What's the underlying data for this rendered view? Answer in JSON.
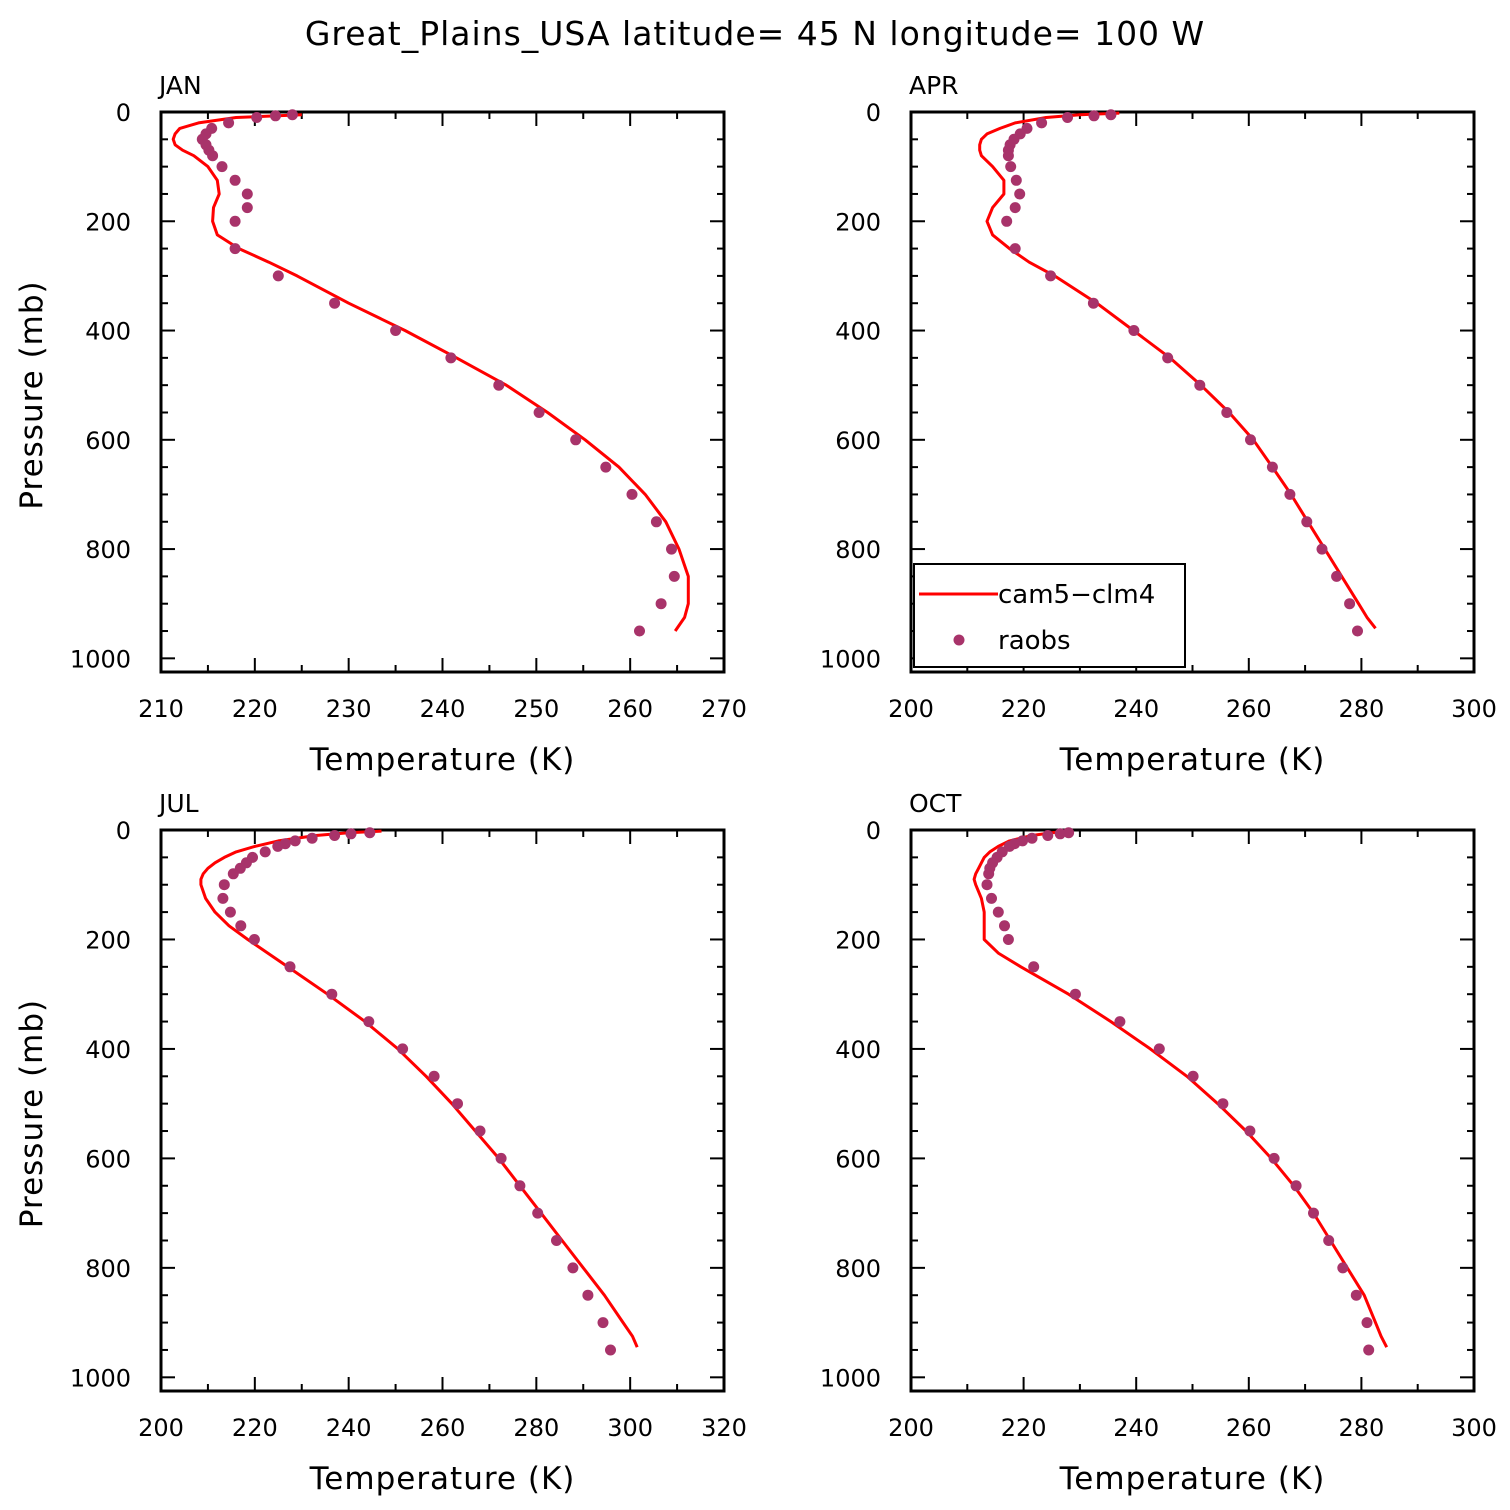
{
  "title": "Great_Plains_USA  latitude= 45 N longitude= 100 W",
  "colors": {
    "model": "#ff0000",
    "obs": "#a8336a",
    "axis": "#000000"
  },
  "legend": {
    "model_label": "cam5−clm4",
    "obs_label": "raobs",
    "panel": "APR"
  },
  "chart_data": [
    {
      "type": "line",
      "panel": "JAN",
      "title": "JAN",
      "xlabel": "Temperature (K)",
      "ylabel": "Pressure (mb)",
      "xlim": [
        210,
        270
      ],
      "xticks": [
        "210",
        "220",
        "230",
        "240",
        "250",
        "260",
        "270"
      ],
      "ylim": [
        1025,
        0
      ],
      "yticks": [
        "0",
        "200",
        "400",
        "600",
        "800",
        "1000"
      ],
      "series": [
        {
          "name": "cam5−clm4",
          "kind": "line",
          "p": [
            5,
            10,
            20,
            30,
            40,
            50,
            60,
            70,
            80,
            100,
            125,
            150,
            175,
            200,
            225,
            250,
            275,
            300,
            350,
            400,
            450,
            500,
            550,
            600,
            650,
            700,
            750,
            800,
            850,
            900,
            925,
            950
          ],
          "t": [
            225,
            218,
            214,
            212,
            211.5,
            211.3,
            211.5,
            212.3,
            213.5,
            215,
            216,
            216.2,
            215.6,
            215.5,
            216,
            218.3,
            221.5,
            224.5,
            230,
            236,
            241.5,
            246.8,
            251.2,
            255.2,
            258.8,
            261.6,
            263.8,
            265.2,
            266.2,
            266.2,
            265.8,
            264.8
          ]
        },
        {
          "name": "raobs",
          "kind": "scatter",
          "p": [
            5,
            7,
            10,
            20,
            30,
            40,
            50,
            60,
            70,
            80,
            100,
            125,
            150,
            175,
            200,
            250,
            300,
            350,
            400,
            450,
            500,
            550,
            600,
            650,
            700,
            750,
            800,
            850,
            900,
            950
          ],
          "t": [
            224,
            222.2,
            220.2,
            217.2,
            215.4,
            214.8,
            214.4,
            214.8,
            215.1,
            215.5,
            216.5,
            217.9,
            219.2,
            219.2,
            217.9,
            217.9,
            222.5,
            228.5,
            235,
            240.9,
            246,
            250.3,
            254.2,
            257.4,
            260.2,
            262.8,
            264.4,
            264.7,
            263.3,
            261
          ]
        }
      ]
    },
    {
      "type": "line",
      "panel": "APR",
      "title": "APR",
      "xlabel": "Temperature (K)",
      "ylabel": "",
      "xlim": [
        200,
        300
      ],
      "xticks": [
        "200",
        "220",
        "240",
        "260",
        "280",
        "300"
      ],
      "ylim": [
        1025,
        0
      ],
      "yticks": [
        "0",
        "200",
        "400",
        "600",
        "800",
        "1000"
      ],
      "series": [
        {
          "name": "cam5−clm4",
          "kind": "line",
          "p": [
            2,
            5,
            10,
            20,
            30,
            40,
            50,
            60,
            70,
            80,
            100,
            125,
            150,
            175,
            200,
            225,
            250,
            275,
            300,
            350,
            400,
            450,
            500,
            550,
            600,
            650,
            700,
            750,
            800,
            850,
            900,
            925,
            945
          ],
          "t": [
            237,
            230,
            224,
            218.5,
            215.8,
            213.5,
            212.5,
            212.2,
            212.2,
            212.5,
            214.5,
            216.5,
            216.5,
            214.5,
            213.5,
            214.5,
            217.5,
            221,
            225.5,
            233,
            239.5,
            246,
            251.5,
            256.5,
            260.8,
            264.2,
            267.5,
            270.5,
            273.5,
            276.5,
            279.5,
            281,
            282.5
          ]
        },
        {
          "name": "raobs",
          "kind": "scatter",
          "p": [
            5,
            7,
            10,
            20,
            30,
            40,
            50,
            60,
            70,
            80,
            100,
            125,
            150,
            175,
            200,
            250,
            300,
            350,
            400,
            450,
            500,
            550,
            600,
            650,
            700,
            750,
            800,
            850,
            900,
            950
          ],
          "t": [
            235.5,
            232.5,
            227.8,
            223.2,
            220.6,
            219.4,
            218.3,
            217.6,
            217.3,
            217.3,
            217.7,
            218.7,
            219.3,
            218.5,
            217,
            218.5,
            224.8,
            232.4,
            239.6,
            245.6,
            251.3,
            256.1,
            260.3,
            264.2,
            267.3,
            270.3,
            273,
            275.6,
            277.9,
            279.3
          ]
        }
      ]
    },
    {
      "type": "line",
      "panel": "JUL",
      "title": "JUL",
      "xlabel": "Temperature (K)",
      "ylabel": "Pressure (mb)",
      "xlim": [
        200,
        320
      ],
      "xticks": [
        "200",
        "220",
        "240",
        "260",
        "280",
        "300",
        "320"
      ],
      "ylim": [
        1025,
        0
      ],
      "yticks": [
        "0",
        "200",
        "400",
        "600",
        "800",
        "1000"
      ],
      "series": [
        {
          "name": "cam5−clm4",
          "kind": "line",
          "p": [
            2,
            5,
            10,
            20,
            30,
            40,
            50,
            60,
            70,
            80,
            90,
            100,
            125,
            150,
            175,
            200,
            250,
            300,
            350,
            400,
            450,
            500,
            550,
            600,
            650,
            700,
            750,
            800,
            850,
            900,
            925,
            945
          ],
          "t": [
            247,
            240,
            233,
            225,
            220,
            216,
            213.5,
            211.5,
            210,
            209,
            208.5,
            208.5,
            209.5,
            211.5,
            214.5,
            218.5,
            227,
            235.5,
            243.5,
            250.5,
            256.5,
            262,
            267,
            272,
            276.5,
            281,
            285.5,
            290,
            294.5,
            298.5,
            300.5,
            301.5
          ]
        },
        {
          "name": "raobs",
          "kind": "scatter",
          "p": [
            5,
            7,
            10,
            15,
            20,
            25,
            30,
            40,
            50,
            60,
            70,
            80,
            100,
            125,
            150,
            175,
            200,
            250,
            300,
            350,
            400,
            450,
            500,
            550,
            600,
            650,
            700,
            750,
            800,
            850,
            900,
            950
          ],
          "t": [
            244.5,
            240.5,
            237,
            232.2,
            228.6,
            226.5,
            224.9,
            222.2,
            219.5,
            218.2,
            216.9,
            215.4,
            213.5,
            213.2,
            214.8,
            217,
            219.9,
            227.5,
            236.4,
            244.3,
            251.5,
            258.2,
            263.2,
            268,
            272.5,
            276.5,
            280.3,
            284.3,
            287.8,
            291,
            294.2,
            295.8
          ]
        }
      ]
    },
    {
      "type": "line",
      "panel": "OCT",
      "title": "OCT",
      "xlabel": "Temperature (K)",
      "ylabel": "",
      "xlim": [
        200,
        300
      ],
      "xticks": [
        "200",
        "220",
        "240",
        "260",
        "280",
        "300"
      ],
      "ylim": [
        1025,
        0
      ],
      "yticks": [
        "0",
        "200",
        "400",
        "600",
        "800",
        "1000"
      ],
      "series": [
        {
          "name": "cam5−clm4",
          "kind": "line",
          "p": [
            2,
            5,
            10,
            20,
            30,
            40,
            50,
            60,
            70,
            80,
            90,
            100,
            125,
            150,
            175,
            200,
            225,
            250,
            300,
            350,
            400,
            450,
            500,
            550,
            600,
            650,
            700,
            750,
            800,
            850,
            900,
            925,
            945
          ],
          "t": [
            228,
            225,
            221.5,
            217.5,
            215.5,
            214,
            213,
            212.5,
            212,
            211.5,
            211.2,
            211.5,
            212.5,
            213,
            213,
            213,
            215.5,
            219.5,
            228,
            235.5,
            242.5,
            249,
            254.5,
            259.5,
            264,
            268,
            271.5,
            274.5,
            277.5,
            280.5,
            282.5,
            283.5,
            284.5
          ]
        },
        {
          "name": "raobs",
          "kind": "scatter",
          "p": [
            5,
            7,
            10,
            15,
            20,
            25,
            30,
            40,
            50,
            60,
            70,
            80,
            100,
            125,
            150,
            175,
            200,
            250,
            300,
            350,
            400,
            450,
            500,
            550,
            600,
            650,
            700,
            750,
            800,
            850,
            900,
            950
          ],
          "t": [
            228,
            226.5,
            224.3,
            221.5,
            219.8,
            218.4,
            217.5,
            216.2,
            215.3,
            214.5,
            214,
            213.8,
            213.5,
            214.3,
            215.5,
            216.6,
            217.3,
            221.8,
            229.2,
            237.1,
            244.1,
            250.1,
            255.4,
            260.2,
            264.5,
            268.4,
            271.5,
            274.2,
            276.7,
            279.1,
            281,
            281.3
          ]
        }
      ]
    }
  ]
}
